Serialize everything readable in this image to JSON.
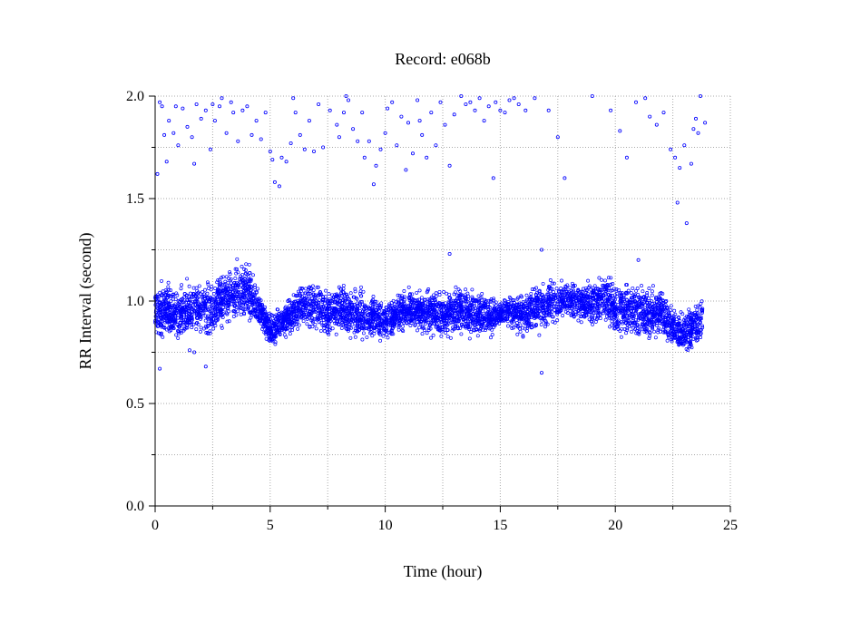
{
  "chart_data": {
    "type": "scatter",
    "title": "Record:  e068b",
    "xlabel": "Time (hour)",
    "ylabel": "RR Interval (second)",
    "xlim": [
      0,
      25
    ],
    "ylim": [
      0,
      2.0
    ],
    "x_ticks": [
      "0",
      "5",
      "10",
      "15",
      "20",
      "25"
    ],
    "x_tick_values": [
      0,
      5,
      10,
      15,
      20,
      25
    ],
    "y_ticks": [
      "0.0",
      "0.5",
      "1.0",
      "1.5",
      "2.0"
    ],
    "y_tick_values": [
      0,
      0.5,
      1.0,
      1.5,
      2.0
    ],
    "grid": true,
    "marker": "open-circle",
    "series_color": "#0000ff",
    "series": [
      {
        "band_profile": {
          "x": [
            0.0,
            0.5,
            1.0,
            1.5,
            2.0,
            2.5,
            3.0,
            3.5,
            4.0,
            4.5,
            5.0,
            5.5,
            6.0,
            6.5,
            7.0,
            7.5,
            8.0,
            8.5,
            9.0,
            9.5,
            10.0,
            10.5,
            11.0,
            11.5,
            12.0,
            12.5,
            13.0,
            13.5,
            14.0,
            14.5,
            15.0,
            15.5,
            16.0,
            16.5,
            17.0,
            17.5,
            18.0,
            18.5,
            19.0,
            19.5,
            20.0,
            20.5,
            21.0,
            21.5,
            22.0,
            22.5,
            23.0,
            23.5,
            23.8
          ],
          "upper": [
            1.1,
            1.12,
            1.08,
            1.13,
            1.1,
            1.12,
            1.18,
            1.2,
            1.22,
            1.08,
            0.95,
            1.0,
            1.05,
            1.1,
            1.12,
            1.08,
            1.1,
            1.07,
            1.1,
            1.05,
            1.0,
            1.05,
            1.08,
            1.05,
            1.08,
            1.05,
            1.1,
            1.08,
            1.07,
            1.05,
            1.0,
            1.05,
            1.08,
            1.1,
            1.12,
            1.1,
            1.12,
            1.12,
            1.13,
            1.15,
            1.13,
            1.1,
            1.12,
            1.08,
            1.1,
            1.0,
            0.95,
            1.02,
            1.05
          ],
          "lower": [
            0.78,
            0.82,
            0.75,
            0.8,
            0.82,
            0.8,
            0.85,
            0.88,
            0.87,
            0.85,
            0.75,
            0.8,
            0.82,
            0.85,
            0.83,
            0.8,
            0.82,
            0.8,
            0.78,
            0.8,
            0.8,
            0.82,
            0.85,
            0.83,
            0.8,
            0.82,
            0.8,
            0.82,
            0.8,
            0.8,
            0.87,
            0.85,
            0.8,
            0.82,
            0.85,
            0.88,
            0.9,
            0.88,
            0.85,
            0.88,
            0.8,
            0.82,
            0.8,
            0.78,
            0.8,
            0.75,
            0.72,
            0.75,
            0.78
          ]
        },
        "outliers": [
          [
            0.1,
            1.62
          ],
          [
            0.2,
            1.97
          ],
          [
            0.3,
            1.95
          ],
          [
            0.4,
            1.81
          ],
          [
            0.5,
            1.68
          ],
          [
            0.6,
            1.88
          ],
          [
            0.8,
            1.82
          ],
          [
            0.9,
            1.95
          ],
          [
            1.0,
            1.76
          ],
          [
            1.2,
            1.94
          ],
          [
            1.4,
            1.85
          ],
          [
            1.6,
            1.8
          ],
          [
            1.7,
            1.67
          ],
          [
            1.8,
            1.96
          ],
          [
            2.0,
            1.89
          ],
          [
            2.2,
            1.93
          ],
          [
            2.4,
            1.74
          ],
          [
            2.5,
            1.96
          ],
          [
            2.6,
            1.88
          ],
          [
            2.8,
            1.95
          ],
          [
            2.9,
            1.99
          ],
          [
            3.1,
            1.82
          ],
          [
            3.3,
            1.97
          ],
          [
            3.4,
            1.92
          ],
          [
            3.6,
            1.78
          ],
          [
            3.8,
            1.93
          ],
          [
            4.0,
            1.95
          ],
          [
            4.2,
            1.81
          ],
          [
            4.4,
            1.88
          ],
          [
            4.6,
            1.79
          ],
          [
            4.8,
            1.92
          ],
          [
            5.0,
            1.73
          ],
          [
            5.1,
            1.69
          ],
          [
            5.2,
            1.58
          ],
          [
            5.4,
            1.56
          ],
          [
            5.5,
            1.7
          ],
          [
            5.7,
            1.68
          ],
          [
            5.9,
            1.77
          ],
          [
            6.0,
            1.99
          ],
          [
            6.1,
            1.92
          ],
          [
            6.3,
            1.81
          ],
          [
            6.5,
            1.74
          ],
          [
            6.7,
            1.88
          ],
          [
            6.9,
            1.73
          ],
          [
            7.1,
            1.96
          ],
          [
            7.3,
            1.75
          ],
          [
            7.6,
            1.93
          ],
          [
            7.9,
            1.86
          ],
          [
            8.0,
            1.8
          ],
          [
            8.2,
            1.92
          ],
          [
            8.3,
            2.0
          ],
          [
            8.4,
            1.98
          ],
          [
            8.6,
            1.84
          ],
          [
            8.8,
            1.78
          ],
          [
            9.0,
            1.92
          ],
          [
            9.1,
            1.7
          ],
          [
            9.3,
            1.78
          ],
          [
            9.5,
            1.57
          ],
          [
            9.6,
            1.66
          ],
          [
            9.8,
            1.74
          ],
          [
            10.0,
            1.82
          ],
          [
            10.1,
            1.94
          ],
          [
            10.3,
            1.97
          ],
          [
            10.5,
            1.76
          ],
          [
            10.7,
            1.9
          ],
          [
            10.9,
            1.64
          ],
          [
            11.0,
            1.87
          ],
          [
            11.2,
            1.72
          ],
          [
            11.4,
            1.98
          ],
          [
            11.5,
            1.88
          ],
          [
            11.6,
            1.81
          ],
          [
            11.8,
            1.7
          ],
          [
            12.0,
            1.92
          ],
          [
            12.2,
            1.76
          ],
          [
            12.4,
            1.97
          ],
          [
            12.6,
            1.86
          ],
          [
            12.8,
            1.66
          ],
          [
            13.0,
            1.91
          ],
          [
            13.3,
            2.0
          ],
          [
            13.5,
            1.96
          ],
          [
            13.7,
            1.97
          ],
          [
            13.9,
            1.93
          ],
          [
            14.1,
            1.99
          ],
          [
            14.3,
            1.88
          ],
          [
            14.5,
            1.95
          ],
          [
            14.7,
            1.6
          ],
          [
            14.8,
            1.97
          ],
          [
            15.0,
            1.93
          ],
          [
            15.2,
            1.92
          ],
          [
            15.4,
            1.98
          ],
          [
            15.6,
            1.99
          ],
          [
            15.8,
            1.96
          ],
          [
            16.1,
            1.93
          ],
          [
            16.5,
            1.99
          ],
          [
            17.1,
            1.93
          ],
          [
            17.5,
            1.8
          ],
          [
            17.8,
            1.6
          ],
          [
            19.0,
            2.0
          ],
          [
            19.8,
            1.93
          ],
          [
            20.2,
            1.83
          ],
          [
            20.5,
            1.7
          ],
          [
            20.9,
            1.97
          ],
          [
            21.3,
            1.99
          ],
          [
            21.5,
            1.9
          ],
          [
            21.8,
            1.86
          ],
          [
            22.1,
            1.92
          ],
          [
            22.4,
            1.74
          ],
          [
            22.6,
            1.7
          ],
          [
            22.7,
            1.48
          ],
          [
            22.8,
            1.65
          ],
          [
            23.0,
            1.76
          ],
          [
            23.1,
            1.38
          ],
          [
            23.3,
            1.67
          ],
          [
            23.4,
            1.84
          ],
          [
            23.5,
            1.89
          ],
          [
            23.6,
            1.82
          ],
          [
            23.7,
            2.0
          ],
          [
            23.9,
            1.87
          ],
          [
            12.8,
            1.23
          ],
          [
            16.8,
            1.25
          ],
          [
            21.0,
            1.2
          ],
          [
            16.8,
            0.65
          ],
          [
            2.2,
            0.68
          ],
          [
            1.7,
            0.75
          ],
          [
            0.2,
            0.67
          ],
          [
            1.5,
            0.76
          ]
        ]
      }
    ]
  }
}
